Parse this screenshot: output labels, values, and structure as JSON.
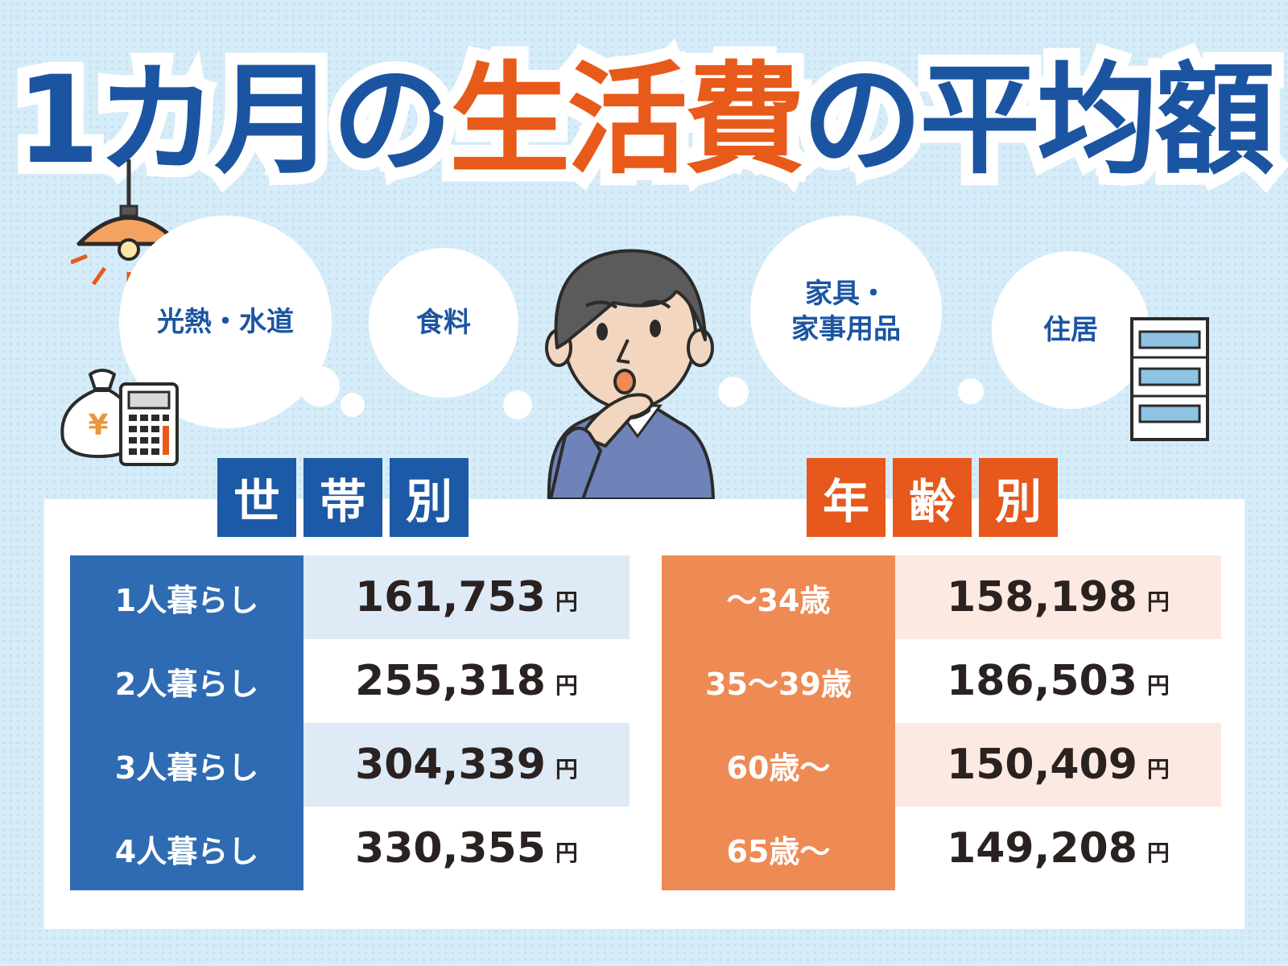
{
  "title": {
    "part1": "1カ月の",
    "part2": "生活費",
    "part3": "の平均額"
  },
  "bubbles": [
    {
      "line1": "光熱・水道",
      "line2": ""
    },
    {
      "line1": "食料",
      "line2": ""
    },
    {
      "line1": "家具・",
      "line2": "家事用品"
    },
    {
      "line1": "住居",
      "line2": ""
    }
  ],
  "icons": {
    "money_bag_symbol": "¥"
  },
  "household": {
    "header": [
      "世",
      "帯",
      "別"
    ],
    "rows": [
      {
        "label": "1人暮らし",
        "value": "161,753",
        "unit": "円"
      },
      {
        "label": "2人暮らし",
        "value": "255,318",
        "unit": "円"
      },
      {
        "label": "3人暮らし",
        "value": "304,339",
        "unit": "円"
      },
      {
        "label": "4人暮らし",
        "value": "330,355",
        "unit": "円"
      }
    ]
  },
  "age": {
    "header": [
      "年",
      "齢",
      "別"
    ],
    "rows": [
      {
        "label": "〜34歳",
        "value": "158,198",
        "unit": "円"
      },
      {
        "label": "35〜39歳",
        "value": "186,503",
        "unit": "円"
      },
      {
        "label": "60歳〜",
        "value": "150,409",
        "unit": "円"
      },
      {
        "label": "65歳〜",
        "value": "149,208",
        "unit": "円"
      }
    ]
  },
  "colors": {
    "blue": "#1c59a6",
    "orange": "#e6581c",
    "background": "#d6ecf8"
  }
}
